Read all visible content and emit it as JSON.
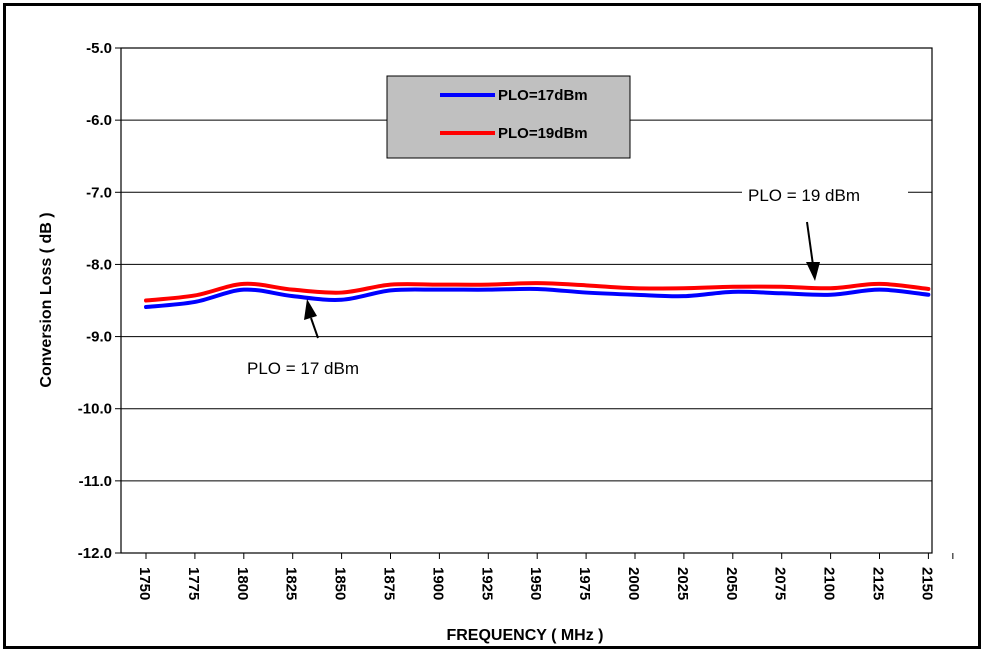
{
  "chart_data": {
    "type": "line",
    "xlabel": "FREQUENCY ( MHz )",
    "ylabel": "Conversion Loss ( dB )",
    "ylim": [
      -12.0,
      -5.0
    ],
    "xlim": [
      1750,
      2150
    ],
    "y_ticks": [
      "-5.0",
      "-6.0",
      "-7.0",
      "-8.0",
      "-9.0",
      "-10.0",
      "-11.0",
      "-12.0"
    ],
    "x_ticks": [
      "1750",
      "1775",
      "1800",
      "1825",
      "1850",
      "1875",
      "1900",
      "1925",
      "1950",
      "1975",
      "2000",
      "2025",
      "2050",
      "2075",
      "2100",
      "2125",
      "2150"
    ],
    "grid": "horizontal",
    "legend_position": "top-center",
    "x": [
      1750,
      1775,
      1800,
      1825,
      1850,
      1875,
      1900,
      1925,
      1950,
      1975,
      2000,
      2025,
      2050,
      2075,
      2100,
      2125,
      2150
    ],
    "series": [
      {
        "name": "PLO=17dBm",
        "color": "#0000ff",
        "values": [
          -8.59,
          -8.52,
          -8.35,
          -8.44,
          -8.49,
          -8.36,
          -8.35,
          -8.35,
          -8.34,
          -8.39,
          -8.42,
          -8.44,
          -8.38,
          -8.4,
          -8.42,
          -8.35,
          -8.42
        ]
      },
      {
        "name": "PLO=19dBm",
        "color": "#ff0000",
        "values": [
          -8.5,
          -8.43,
          -8.27,
          -8.35,
          -8.39,
          -8.28,
          -8.28,
          -8.28,
          -8.26,
          -8.29,
          -8.33,
          -8.33,
          -8.31,
          -8.31,
          -8.33,
          -8.27,
          -8.34
        ]
      }
    ],
    "annotations": [
      {
        "text": "PLO = 19 dBm",
        "series": "PLO=19dBm",
        "x": 2100
      },
      {
        "text": "PLO = 17 dBm",
        "series": "PLO=17dBm",
        "x": 1837
      }
    ]
  }
}
